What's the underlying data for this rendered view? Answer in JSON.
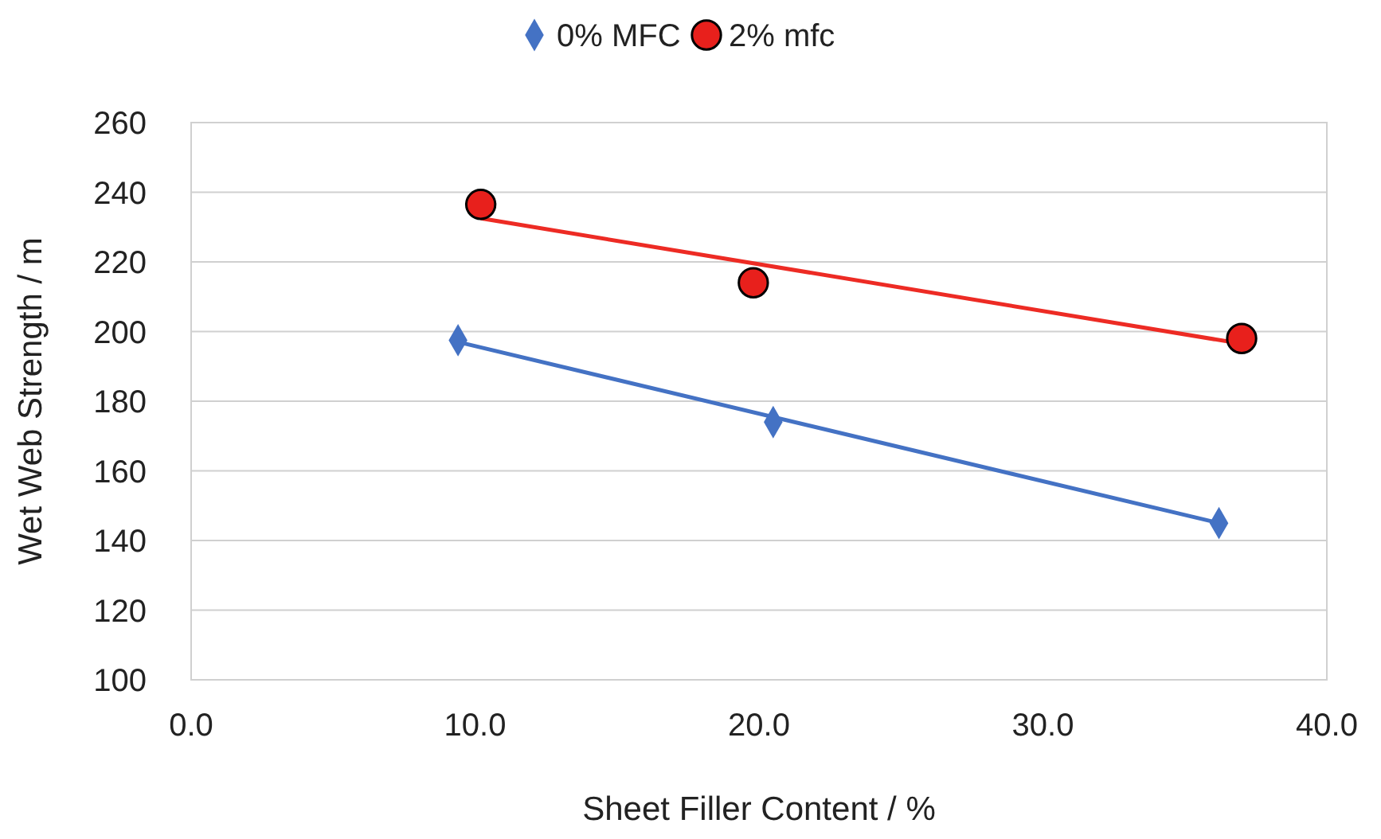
{
  "chart_data": {
    "type": "scatter",
    "xlabel": "Sheet Filler Content / %",
    "ylabel": "Wet Web Strength / m",
    "xlim": [
      0,
      40
    ],
    "xticks": [
      {
        "value": 0,
        "label": "0.0"
      },
      {
        "value": 10,
        "label": "10.0"
      },
      {
        "value": 20,
        "label": "20.0"
      },
      {
        "value": 30,
        "label": "30.0"
      },
      {
        "value": 40,
        "label": "40.0"
      }
    ],
    "ylim": [
      100,
      260
    ],
    "yticks": [
      100,
      120,
      140,
      160,
      180,
      200,
      220,
      240,
      260
    ],
    "grid": "y",
    "legend": "top",
    "series": [
      {
        "name": "0% MFC",
        "color": "#4472c4",
        "marker": "diamond",
        "x": [
          9.4,
          20.5,
          36.2
        ],
        "values": [
          197.5,
          174,
          145
        ]
      },
      {
        "name": "2% mfc",
        "color": "#e8201c",
        "marker": "circle",
        "x": [
          10.2,
          19.8,
          37.0
        ],
        "values": [
          236.5,
          214,
          198
        ]
      },
      {
        "type": "line",
        "color": "#4472c4",
        "marker": "none",
        "x": [
          9.4,
          36.2
        ],
        "values": [
          197,
          145
        ]
      },
      {
        "type": "line",
        "color": "#ed2b24",
        "marker": "none",
        "x": [
          10.2,
          37.0
        ],
        "values": [
          232.5,
          196.5
        ]
      }
    ]
  }
}
